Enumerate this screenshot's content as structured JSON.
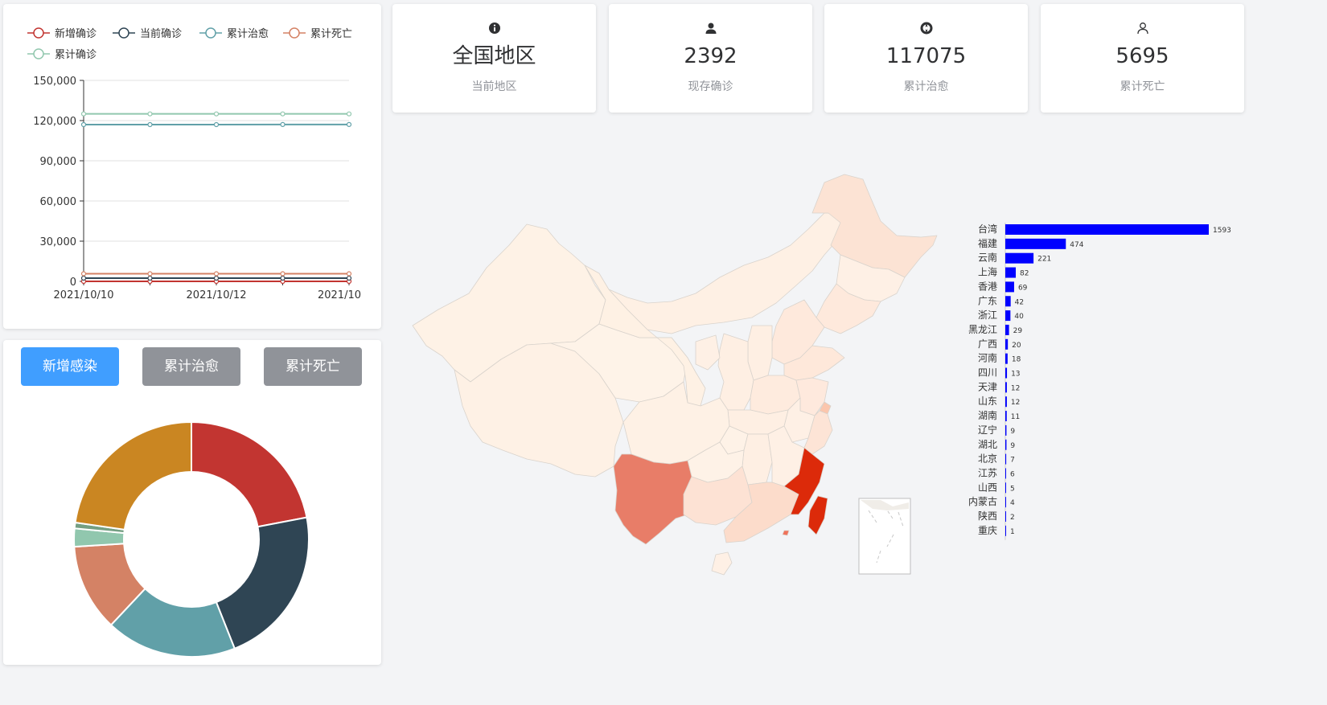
{
  "stats": [
    {
      "value": "全国地区",
      "label": "当前地区",
      "icon": "info-icon"
    },
    {
      "value": "2392",
      "label": "现存确诊",
      "icon": "user-filled-icon"
    },
    {
      "value": "117075",
      "label": "累计治愈",
      "icon": "help-circle-icon"
    },
    {
      "value": "5695",
      "label": "累计死亡",
      "icon": "user-outline-icon"
    }
  ],
  "buttons": [
    "新增感染",
    "累计治愈",
    "累计死亡"
  ],
  "colors": {
    "new": "#c23531",
    "current": "#2f4554",
    "cured": "#61a0a8",
    "dead": "#d48265",
    "confirmed": "#91c7ae",
    "bar": "#0000ff",
    "primary": "#409eff",
    "info": "#909399"
  },
  "chart_data": [
    {
      "type": "line",
      "title": "",
      "x_tick_labels": [
        "2021/10/10",
        "2021/10/12",
        "2021/10"
      ],
      "points_per_series": 5,
      "ylim": [
        0,
        150000
      ],
      "y_ticks": [
        "0",
        "30,000",
        "60,000",
        "90,000",
        "120,000",
        "150,000"
      ],
      "legend": [
        "新增确诊",
        "当前确诊",
        "累计治愈",
        "累计死亡",
        "累计确诊"
      ],
      "series": [
        {
          "name": "新增确诊",
          "values": [
            0,
            0,
            0,
            0,
            0
          ]
        },
        {
          "name": "当前确诊",
          "values": [
            2392,
            2392,
            2392,
            2392,
            2392
          ]
        },
        {
          "name": "累计治愈",
          "values": [
            117000,
            117000,
            117000,
            117075,
            117075
          ]
        },
        {
          "name": "累计死亡",
          "values": [
            5695,
            5695,
            5695,
            5695,
            5695
          ]
        },
        {
          "name": "累计确诊",
          "values": [
            125000,
            125000,
            125000,
            125000,
            125000
          ]
        }
      ]
    },
    {
      "type": "pie",
      "donut": true,
      "slices": [
        {
          "value": 22,
          "color": "#c23531"
        },
        {
          "value": 22,
          "color": "#2f4554"
        },
        {
          "value": 18,
          "color": "#61a0a8"
        },
        {
          "value": 12,
          "color": "#d48265"
        },
        {
          "value": 2.5,
          "color": "#91c7ae"
        },
        {
          "value": 0.8,
          "color": "#749f83"
        },
        {
          "value": 22.7,
          "color": "#ca8622"
        }
      ]
    },
    {
      "type": "bar",
      "orientation": "horizontal",
      "categories": [
        "台湾",
        "福建",
        "云南",
        "上海",
        "香港",
        "广东",
        "浙江",
        "黑龙江",
        "广西",
        "河南",
        "四川",
        "天津",
        "山东",
        "湖南",
        "辽宁",
        "湖北",
        "北京",
        "江苏",
        "山西",
        "内蒙古",
        "陕西",
        "重庆"
      ],
      "values": [
        1593,
        474,
        221,
        82,
        69,
        42,
        40,
        29,
        20,
        18,
        13,
        12,
        12,
        11,
        9,
        9,
        7,
        6,
        5,
        4,
        2,
        1
      ]
    }
  ]
}
